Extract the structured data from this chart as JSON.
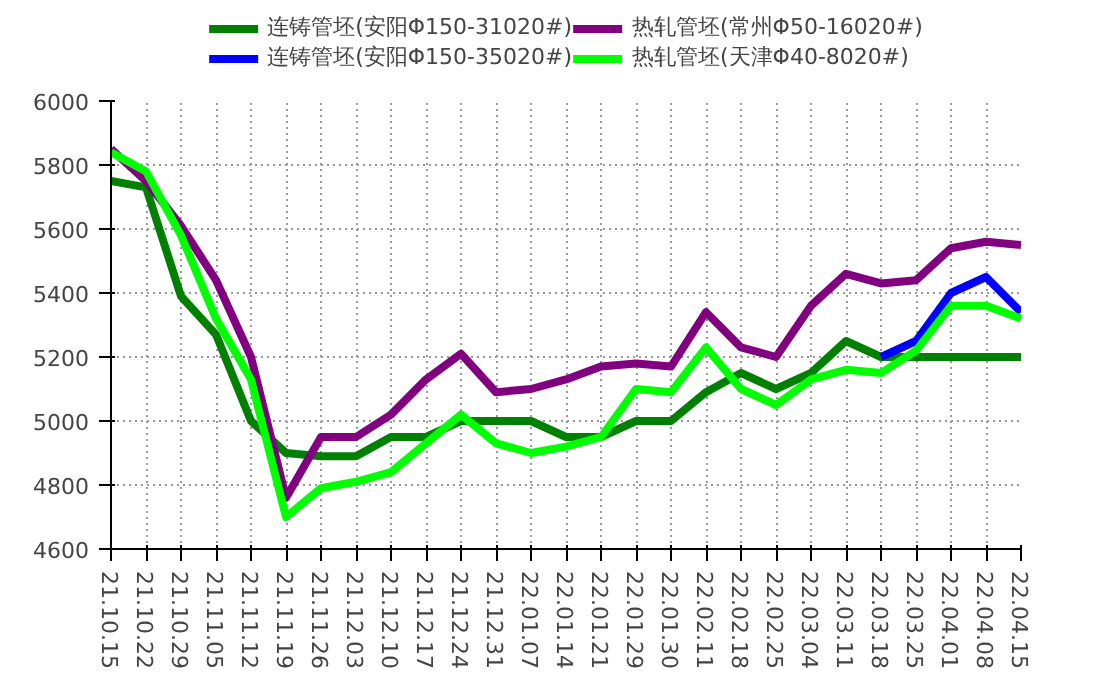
{
  "chart_data": {
    "type": "line",
    "categories": [
      "21.10.15",
      "21.10.22",
      "21.10.29",
      "21.11.05",
      "21.11.12",
      "21.11.19",
      "21.11.26",
      "21.12.03",
      "21.12.10",
      "21.12.17",
      "21.12.24",
      "21.12.31",
      "22.01.07",
      "22.01.14",
      "22.01.21",
      "22.01.29",
      "22.01.30",
      "22.02.11",
      "22.02.18",
      "22.02.25",
      "22.03.04",
      "22.03.11",
      "22.03.18",
      "22.03.25",
      "22.04.01",
      "22.04.08",
      "22.04.15"
    ],
    "series": [
      {
        "name": "连铸管坯(安阳Φ150-31020#)",
        "color": "#008000",
        "values": [
          5750,
          5730,
          5390,
          5270,
          5000,
          4900,
          4890,
          4890,
          4950,
          4950,
          5000,
          5000,
          5000,
          4950,
          4950,
          5000,
          5000,
          5090,
          5150,
          5100,
          5150,
          5250,
          5200,
          5200,
          5200,
          5200,
          5200
        ]
      },
      {
        "name": "连铸管坯(安阳Φ150-35020#)",
        "color": "#0000ff",
        "values": [
          null,
          null,
          null,
          null,
          null,
          null,
          null,
          null,
          null,
          null,
          null,
          null,
          null,
          null,
          null,
          null,
          null,
          null,
          null,
          null,
          null,
          null,
          5200,
          5250,
          5400,
          5450,
          5340
        ]
      },
      {
        "name": "热轧管坯(常州Φ50-16020#)",
        "color": "#800080",
        "values": [
          5850,
          5750,
          5610,
          5440,
          5200,
          4760,
          4950,
          4950,
          5020,
          5130,
          5210,
          5090,
          5100,
          5130,
          5170,
          5180,
          5170,
          5340,
          5230,
          5200,
          5360,
          5460,
          5430,
          5440,
          5540,
          5560,
          5550
        ]
      },
      {
        "name": "热轧管坯(天津Φ40-8020#)",
        "color": "#00ff00",
        "values": [
          5840,
          5780,
          5580,
          5320,
          5130,
          4700,
          4790,
          4810,
          4840,
          4930,
          5020,
          4930,
          4900,
          4920,
          4950,
          5100,
          5090,
          5230,
          5100,
          5050,
          5130,
          5160,
          5150,
          5220,
          5360,
          5360,
          5320
        ]
      }
    ],
    "ylim": [
      4600,
      6000
    ],
    "yticks": [
      4600,
      4800,
      5000,
      5200,
      5400,
      5600,
      5800,
      6000
    ],
    "grid": true,
    "legend": "top",
    "marker": "none",
    "line_style": "solid"
  }
}
